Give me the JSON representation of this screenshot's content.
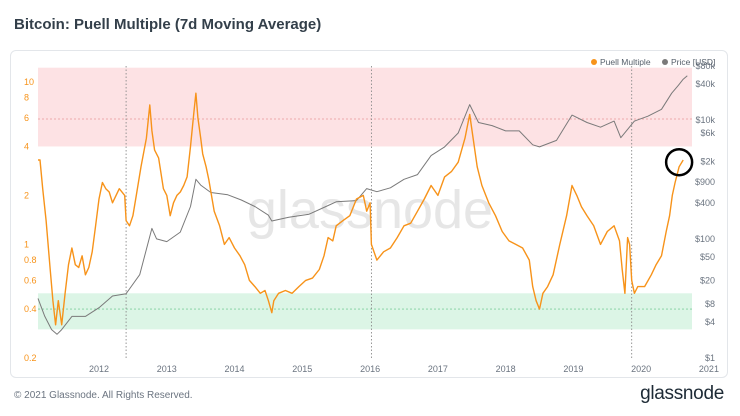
{
  "title": "Bitcoin: Puell Multiple (7d Moving Average)",
  "footer": {
    "copyright": "© 2021 Glassnode. All Rights Reserved.",
    "brand": "glassnode"
  },
  "watermark": "glassnode",
  "colors": {
    "puell": "#f7931a",
    "price": "#7a7a7a",
    "red_band": "#fde2e4",
    "green_band": "#dcf5e6",
    "red_line": "#e89898",
    "green_line": "#7fcf9f",
    "vline": "#8c8c8c",
    "marker": "#000000"
  },
  "chart_data": {
    "type": "line",
    "title": "Bitcoin: Puell Multiple (7d Moving Average)",
    "x_range": [
      2011.6,
      2021.25
    ],
    "x_ticks": [
      {
        "label": "2012",
        "value": 2012
      },
      {
        "label": "2013",
        "value": 2013
      },
      {
        "label": "2014",
        "value": 2014
      },
      {
        "label": "2015",
        "value": 2015
      },
      {
        "label": "2016",
        "value": 2016
      },
      {
        "label": "2017",
        "value": 2017
      },
      {
        "label": "2018",
        "value": 2018
      },
      {
        "label": "2019",
        "value": 2019
      },
      {
        "label": "2020",
        "value": 2020
      },
      {
        "label": "2021",
        "value": 2021
      }
    ],
    "y_left": {
      "scale": "log",
      "range": [
        0.2,
        12.5
      ],
      "ticks": [
        {
          "label": "10",
          "value": 10
        },
        {
          "label": "8",
          "value": 8
        },
        {
          "label": "6",
          "value": 6
        },
        {
          "label": "4",
          "value": 4
        },
        {
          "label": "2",
          "value": 2
        },
        {
          "label": "1",
          "value": 1
        },
        {
          "label": "0.8",
          "value": 0.8
        },
        {
          "label": "0.6",
          "value": 0.6
        },
        {
          "label": "0.4",
          "value": 0.4
        },
        {
          "label": "0.2",
          "value": 0.2
        }
      ]
    },
    "y_right": {
      "scale": "log",
      "label": "Price [USD]",
      "range": [
        1,
        80000
      ],
      "ticks": [
        {
          "label": "$80k",
          "value": 80000
        },
        {
          "label": "$40k",
          "value": 40000
        },
        {
          "label": "$10k",
          "value": 10000
        },
        {
          "label": "$6k",
          "value": 6000
        },
        {
          "label": "$2k",
          "value": 2000
        },
        {
          "label": "$900",
          "value": 900
        },
        {
          "label": "$400",
          "value": 400
        },
        {
          "label": "$100",
          "value": 100
        },
        {
          "label": "$50",
          "value": 50
        },
        {
          "label": "$20",
          "value": 20
        },
        {
          "label": "$8",
          "value": 8
        },
        {
          "label": "$4",
          "value": 4
        },
        {
          "label": "$1",
          "value": 1
        }
      ]
    },
    "bands": [
      {
        "name": "overvalued",
        "from": 4,
        "to": 12.2,
        "reference_line": 5.9
      },
      {
        "name": "undervalued",
        "from": 0.3,
        "to": 0.5,
        "reference_line": 0.4
      }
    ],
    "halvings": [
      2012.9,
      2016.52,
      2020.36
    ],
    "marker": {
      "x": 2021.06,
      "y": 3.2
    },
    "legend": {
      "position": "top-right",
      "entries": [
        "Puell Multiple",
        "Price [USD]"
      ]
    },
    "series": [
      {
        "name": "Puell Multiple",
        "axis": "left",
        "points": [
          [
            2011.6,
            3.3
          ],
          [
            2011.63,
            3.3
          ],
          [
            2011.67,
            2.2
          ],
          [
            2011.72,
            1.4
          ],
          [
            2011.78,
            0.7
          ],
          [
            2011.82,
            0.45
          ],
          [
            2011.86,
            0.32
          ],
          [
            2011.9,
            0.45
          ],
          [
            2011.95,
            0.32
          ],
          [
            2012.0,
            0.5
          ],
          [
            2012.05,
            0.75
          ],
          [
            2012.1,
            0.95
          ],
          [
            2012.15,
            0.75
          ],
          [
            2012.2,
            0.72
          ],
          [
            2012.25,
            0.85
          ],
          [
            2012.3,
            0.65
          ],
          [
            2012.35,
            0.72
          ],
          [
            2012.4,
            0.9
          ],
          [
            2012.45,
            1.3
          ],
          [
            2012.5,
            1.9
          ],
          [
            2012.55,
            2.4
          ],
          [
            2012.6,
            2.2
          ],
          [
            2012.65,
            2.1
          ],
          [
            2012.7,
            1.8
          ],
          [
            2012.8,
            2.2
          ],
          [
            2012.88,
            2.0
          ],
          [
            2012.9,
            1.4
          ],
          [
            2012.95,
            1.3
          ],
          [
            2013.0,
            1.5
          ],
          [
            2013.05,
            2.0
          ],
          [
            2013.12,
            3.0
          ],
          [
            2013.2,
            4.5
          ],
          [
            2013.25,
            7.2
          ],
          [
            2013.28,
            5.0
          ],
          [
            2013.32,
            3.8
          ],
          [
            2013.38,
            3.4
          ],
          [
            2013.45,
            2.2
          ],
          [
            2013.5,
            2.0
          ],
          [
            2013.55,
            1.5
          ],
          [
            2013.6,
            1.8
          ],
          [
            2013.65,
            2.0
          ],
          [
            2013.7,
            2.1
          ],
          [
            2013.75,
            2.3
          ],
          [
            2013.8,
            2.6
          ],
          [
            2013.85,
            4.0
          ],
          [
            2013.9,
            6.5
          ],
          [
            2013.93,
            8.5
          ],
          [
            2013.96,
            6.0
          ],
          [
            2014.0,
            4.5
          ],
          [
            2014.03,
            3.6
          ],
          [
            2014.08,
            3.0
          ],
          [
            2014.12,
            2.5
          ],
          [
            2014.2,
            1.6
          ],
          [
            2014.28,
            1.3
          ],
          [
            2014.35,
            1.0
          ],
          [
            2014.42,
            1.1
          ],
          [
            2014.5,
            0.95
          ],
          [
            2014.58,
            0.85
          ],
          [
            2014.65,
            0.75
          ],
          [
            2014.72,
            0.6
          ],
          [
            2014.8,
            0.55
          ],
          [
            2014.88,
            0.5
          ],
          [
            2014.95,
            0.52
          ],
          [
            2015.0,
            0.45
          ],
          [
            2015.05,
            0.38
          ],
          [
            2015.08,
            0.45
          ],
          [
            2015.15,
            0.5
          ],
          [
            2015.25,
            0.52
          ],
          [
            2015.35,
            0.5
          ],
          [
            2015.45,
            0.55
          ],
          [
            2015.55,
            0.6
          ],
          [
            2015.65,
            0.62
          ],
          [
            2015.75,
            0.7
          ],
          [
            2015.82,
            0.85
          ],
          [
            2015.88,
            1.1
          ],
          [
            2015.95,
            1.05
          ],
          [
            2016.0,
            1.3
          ],
          [
            2016.1,
            1.4
          ],
          [
            2016.2,
            1.5
          ],
          [
            2016.3,
            1.9
          ],
          [
            2016.4,
            2.0
          ],
          [
            2016.45,
            1.6
          ],
          [
            2016.5,
            1.8
          ],
          [
            2016.52,
            1.0
          ],
          [
            2016.6,
            0.8
          ],
          [
            2016.7,
            0.9
          ],
          [
            2016.8,
            0.95
          ],
          [
            2016.9,
            1.1
          ],
          [
            2017.0,
            1.3
          ],
          [
            2017.1,
            1.35
          ],
          [
            2017.2,
            1.6
          ],
          [
            2017.3,
            1.9
          ],
          [
            2017.4,
            2.3
          ],
          [
            2017.5,
            2.0
          ],
          [
            2017.6,
            2.6
          ],
          [
            2017.7,
            2.8
          ],
          [
            2017.8,
            3.2
          ],
          [
            2017.9,
            4.5
          ],
          [
            2017.97,
            6.3
          ],
          [
            2018.02,
            4.5
          ],
          [
            2018.08,
            3.0
          ],
          [
            2018.15,
            2.3
          ],
          [
            2018.25,
            1.8
          ],
          [
            2018.35,
            1.5
          ],
          [
            2018.45,
            1.2
          ],
          [
            2018.55,
            1.05
          ],
          [
            2018.65,
            1.0
          ],
          [
            2018.75,
            0.95
          ],
          [
            2018.85,
            0.8
          ],
          [
            2018.9,
            0.55
          ],
          [
            2018.95,
            0.45
          ],
          [
            2019.0,
            0.4
          ],
          [
            2019.05,
            0.5
          ],
          [
            2019.12,
            0.55
          ],
          [
            2019.2,
            0.65
          ],
          [
            2019.3,
            1.0
          ],
          [
            2019.4,
            1.5
          ],
          [
            2019.48,
            2.3
          ],
          [
            2019.55,
            2.0
          ],
          [
            2019.62,
            1.7
          ],
          [
            2019.7,
            1.5
          ],
          [
            2019.8,
            1.3
          ],
          [
            2019.9,
            1.0
          ],
          [
            2020.0,
            1.2
          ],
          [
            2020.1,
            1.3
          ],
          [
            2020.18,
            1.05
          ],
          [
            2020.22,
            0.7
          ],
          [
            2020.26,
            0.5
          ],
          [
            2020.3,
            1.1
          ],
          [
            2020.33,
            1.0
          ],
          [
            2020.36,
            0.6
          ],
          [
            2020.4,
            0.5
          ],
          [
            2020.45,
            0.55
          ],
          [
            2020.55,
            0.55
          ],
          [
            2020.65,
            0.65
          ],
          [
            2020.72,
            0.75
          ],
          [
            2020.8,
            0.85
          ],
          [
            2020.87,
            1.2
          ],
          [
            2020.92,
            1.5
          ],
          [
            2020.96,
            2.0
          ],
          [
            2021.0,
            2.4
          ],
          [
            2021.06,
            3.0
          ],
          [
            2021.12,
            3.3
          ]
        ]
      },
      {
        "name": "Price [USD]",
        "axis": "right",
        "points": [
          [
            2011.6,
            10
          ],
          [
            2011.7,
            5
          ],
          [
            2011.8,
            3
          ],
          [
            2011.88,
            2.5
          ],
          [
            2011.95,
            3
          ],
          [
            2012.1,
            5
          ],
          [
            2012.3,
            5
          ],
          [
            2012.5,
            7
          ],
          [
            2012.7,
            11
          ],
          [
            2012.9,
            12
          ],
          [
            2013.1,
            25
          ],
          [
            2013.28,
            150
          ],
          [
            2013.35,
            100
          ],
          [
            2013.5,
            90
          ],
          [
            2013.7,
            130
          ],
          [
            2013.85,
            350
          ],
          [
            2013.93,
            1000
          ],
          [
            2014.0,
            800
          ],
          [
            2014.15,
            600
          ],
          [
            2014.4,
            550
          ],
          [
            2014.6,
            450
          ],
          [
            2014.8,
            350
          ],
          [
            2015.0,
            250
          ],
          [
            2015.05,
            200
          ],
          [
            2015.3,
            230
          ],
          [
            2015.6,
            260
          ],
          [
            2015.85,
            350
          ],
          [
            2016.0,
            420
          ],
          [
            2016.3,
            440
          ],
          [
            2016.45,
            700
          ],
          [
            2016.6,
            620
          ],
          [
            2016.8,
            720
          ],
          [
            2017.0,
            1000
          ],
          [
            2017.2,
            1200
          ],
          [
            2017.4,
            2500
          ],
          [
            2017.6,
            3500
          ],
          [
            2017.8,
            6000
          ],
          [
            2017.97,
            18000
          ],
          [
            2018.1,
            9000
          ],
          [
            2018.3,
            8000
          ],
          [
            2018.5,
            6500
          ],
          [
            2018.7,
            6500
          ],
          [
            2018.9,
            3800
          ],
          [
            2019.0,
            3500
          ],
          [
            2019.25,
            4500
          ],
          [
            2019.48,
            12000
          ],
          [
            2019.7,
            9000
          ],
          [
            2019.9,
            7500
          ],
          [
            2020.1,
            9500
          ],
          [
            2020.2,
            5000
          ],
          [
            2020.4,
            9500
          ],
          [
            2020.6,
            11500
          ],
          [
            2020.8,
            15000
          ],
          [
            2020.95,
            28000
          ],
          [
            2021.05,
            38000
          ],
          [
            2021.12,
            48000
          ],
          [
            2021.18,
            55000
          ]
        ]
      }
    ]
  }
}
